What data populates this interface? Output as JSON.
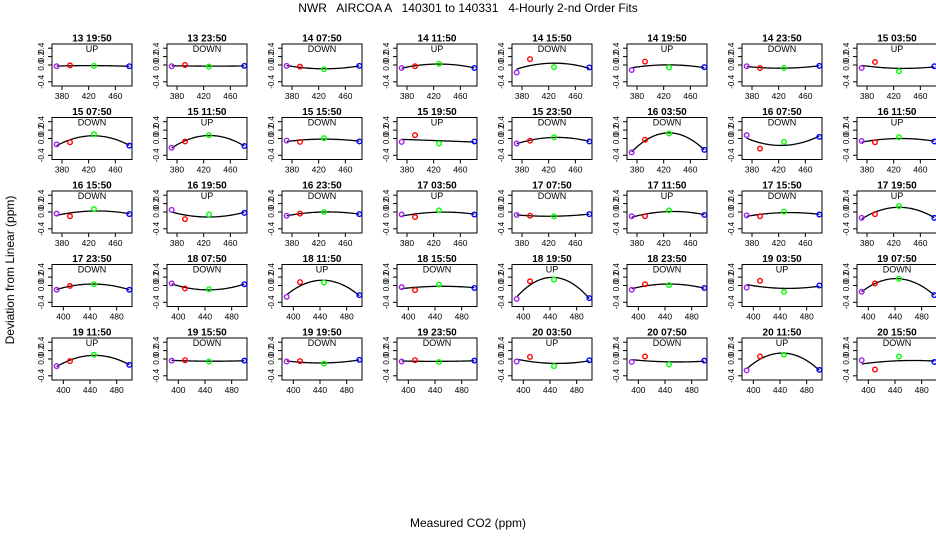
{
  "title": "NWR   AIRCOA A   140301 to 140331   4-Hourly 2-nd Order Fits",
  "chart_data": {
    "type": "scatter",
    "title": "NWR   AIRCOA A   140301 to 140331   4-Hourly 2-nd Order Fits",
    "xlabel": "Measured CO2 (ppm)",
    "ylabel": "Deviation from Linear (ppm)",
    "ylim": [
      -0.5,
      0.5
    ],
    "yticks": [
      "-0.4",
      "0.0",
      "0.2",
      "0.4"
    ],
    "ytick_values": [
      -0.4,
      0.0,
      0.2,
      0.4
    ],
    "rows": [
      {
        "xlim": [
          365,
          485
        ],
        "xticks": [
          "380",
          "420",
          "460"
        ],
        "xtick_values": [
          380,
          420,
          460
        ],
        "x": [
          372,
          392,
          428,
          481
        ]
      },
      {
        "xlim": [
          365,
          485
        ],
        "xticks": [
          "380",
          "420",
          "460"
        ],
        "xtick_values": [
          380,
          420,
          460
        ],
        "x": [
          372,
          392,
          428,
          481
        ]
      },
      {
        "xlim": [
          365,
          485
        ],
        "xticks": [
          "380",
          "420",
          "460"
        ],
        "xtick_values": [
          380,
          420,
          460
        ],
        "x": [
          372,
          392,
          428,
          481
        ]
      },
      {
        "xlim": [
          383,
          503
        ],
        "xticks": [
          "400",
          "440",
          "480"
        ],
        "xtick_values": [
          400,
          440,
          480
        ],
        "x": [
          390,
          410,
          446,
          499
        ]
      },
      {
        "xlim": [
          383,
          503
        ],
        "xticks": [
          "400",
          "440",
          "480"
        ],
        "xtick_values": [
          400,
          440,
          480
        ],
        "x": [
          390,
          410,
          446,
          499
        ]
      }
    ],
    "colors": {
      "p1": "#a020f0",
      "p2": "#ff0000",
      "p3": "#00ff00",
      "p4": "#0000ff",
      "fit": "#000000"
    },
    "panels": [
      {
        "label": "13 19:50",
        "mode": "UP",
        "y": [
          -0.03,
          -0.01,
          -0.02,
          -0.03
        ]
      },
      {
        "label": "13 23:50",
        "mode": "DOWN",
        "y": [
          -0.03,
          0.0,
          -0.04,
          -0.02
        ]
      },
      {
        "label": "14 07:50",
        "mode": "DOWN",
        "y": [
          -0.02,
          -0.04,
          -0.1,
          -0.02
        ]
      },
      {
        "label": "14 11:50",
        "mode": "UP",
        "y": [
          -0.07,
          -0.03,
          0.03,
          -0.07
        ]
      },
      {
        "label": "14 15:50",
        "mode": "DOWN",
        "y": [
          -0.18,
          0.14,
          -0.05,
          -0.06
        ]
      },
      {
        "label": "14 19:50",
        "mode": "UP",
        "y": [
          -0.12,
          0.08,
          -0.06,
          -0.05
        ]
      },
      {
        "label": "14 23:50",
        "mode": "DOWN",
        "y": [
          -0.03,
          -0.07,
          -0.07,
          -0.02
        ]
      },
      {
        "label": "15 03:50",
        "mode": "UP",
        "y": [
          -0.07,
          0.07,
          -0.15,
          -0.03
        ]
      },
      {
        "label": "15 07:50",
        "mode": "DOWN",
        "y": [
          -0.14,
          -0.09,
          0.1,
          -0.17
        ]
      },
      {
        "label": "15 11:50",
        "mode": "UP",
        "y": [
          -0.22,
          -0.07,
          0.08,
          -0.18
        ]
      },
      {
        "label": "15 15:50",
        "mode": "DOWN",
        "y": [
          -0.05,
          -0.08,
          0.01,
          -0.07
        ]
      },
      {
        "label": "15 19:50",
        "mode": "UP",
        "y": [
          -0.08,
          0.08,
          -0.12,
          -0.07
        ]
      },
      {
        "label": "15 23:50",
        "mode": "DOWN",
        "y": [
          -0.12,
          -0.05,
          0.03,
          -0.07
        ]
      },
      {
        "label": "16 03:50",
        "mode": "DOWN",
        "y": [
          -0.33,
          -0.03,
          0.12,
          -0.27
        ]
      },
      {
        "label": "16 07:50",
        "mode": "DOWN",
        "y": [
          0.08,
          -0.24,
          -0.08,
          0.04
        ]
      },
      {
        "label": "16 11:50",
        "mode": "UP",
        "y": [
          -0.06,
          -0.09,
          0.03,
          -0.07
        ]
      },
      {
        "label": "16 15:50",
        "mode": "DOWN",
        "y": [
          -0.04,
          -0.1,
          0.07,
          -0.05
        ]
      },
      {
        "label": "16 19:50",
        "mode": "UP",
        "y": [
          0.05,
          -0.17,
          -0.06,
          -0.02
        ]
      },
      {
        "label": "16 23:50",
        "mode": "DOWN",
        "y": [
          -0.09,
          -0.04,
          0.0,
          -0.05
        ]
      },
      {
        "label": "17 03:50",
        "mode": "UP",
        "y": [
          -0.06,
          -0.12,
          0.04,
          -0.06
        ]
      },
      {
        "label": "17 07:50",
        "mode": "DOWN",
        "y": [
          -0.07,
          -0.09,
          -0.1,
          -0.05
        ]
      },
      {
        "label": "17 11:50",
        "mode": "UP",
        "y": [
          -0.1,
          -0.1,
          0.04,
          -0.07
        ]
      },
      {
        "label": "17 15:50",
        "mode": "DOWN",
        "y": [
          -0.08,
          -0.1,
          0.01,
          -0.06
        ]
      },
      {
        "label": "17 19:50",
        "mode": "UP",
        "y": [
          -0.14,
          -0.05,
          0.14,
          -0.14
        ]
      },
      {
        "label": "17 23:50",
        "mode": "DOWN",
        "y": [
          -0.1,
          -0.01,
          0.03,
          -0.1
        ]
      },
      {
        "label": "18 07:50",
        "mode": "DOWN",
        "y": [
          0.05,
          -0.07,
          -0.09,
          0.03
        ]
      },
      {
        "label": "18 11:50",
        "mode": "UP",
        "y": [
          -0.27,
          0.08,
          0.07,
          -0.23
        ]
      },
      {
        "label": "18 15:50",
        "mode": "DOWN",
        "y": [
          -0.04,
          -0.11,
          0.02,
          -0.06
        ]
      },
      {
        "label": "18 19:50",
        "mode": "UP",
        "y": [
          -0.32,
          0.1,
          0.14,
          -0.3
        ]
      },
      {
        "label": "18 23:50",
        "mode": "DOWN",
        "y": [
          -0.1,
          0.03,
          0.01,
          -0.06
        ]
      },
      {
        "label": "19 03:50",
        "mode": "UP",
        "y": [
          -0.05,
          0.11,
          -0.15,
          0.0
        ]
      },
      {
        "label": "19 07:50",
        "mode": "DOWN",
        "y": [
          -0.15,
          0.05,
          0.16,
          -0.23
        ]
      },
      {
        "label": "19 11:50",
        "mode": "UP",
        "y": [
          -0.17,
          -0.05,
          0.1,
          -0.14
        ]
      },
      {
        "label": "19 15:50",
        "mode": "DOWN",
        "y": [
          -0.04,
          -0.03,
          -0.06,
          -0.04
        ]
      },
      {
        "label": "19 19:50",
        "mode": "DOWN",
        "y": [
          -0.06,
          -0.05,
          -0.11,
          -0.02
        ]
      },
      {
        "label": "19 23:50",
        "mode": "DOWN",
        "y": [
          -0.06,
          -0.03,
          -0.07,
          -0.04
        ]
      },
      {
        "label": "20 03:50",
        "mode": "UP",
        "y": [
          -0.06,
          0.05,
          -0.17,
          -0.03
        ]
      },
      {
        "label": "20 07:50",
        "mode": "DOWN",
        "y": [
          -0.07,
          0.06,
          -0.13,
          -0.04
        ]
      },
      {
        "label": "20 11:50",
        "mode": "UP",
        "y": [
          -0.27,
          0.06,
          0.1,
          -0.26
        ]
      },
      {
        "label": "20 15:50",
        "mode": "DOWN",
        "y": [
          -0.03,
          -0.25,
          0.06,
          -0.07
        ]
      }
    ]
  }
}
